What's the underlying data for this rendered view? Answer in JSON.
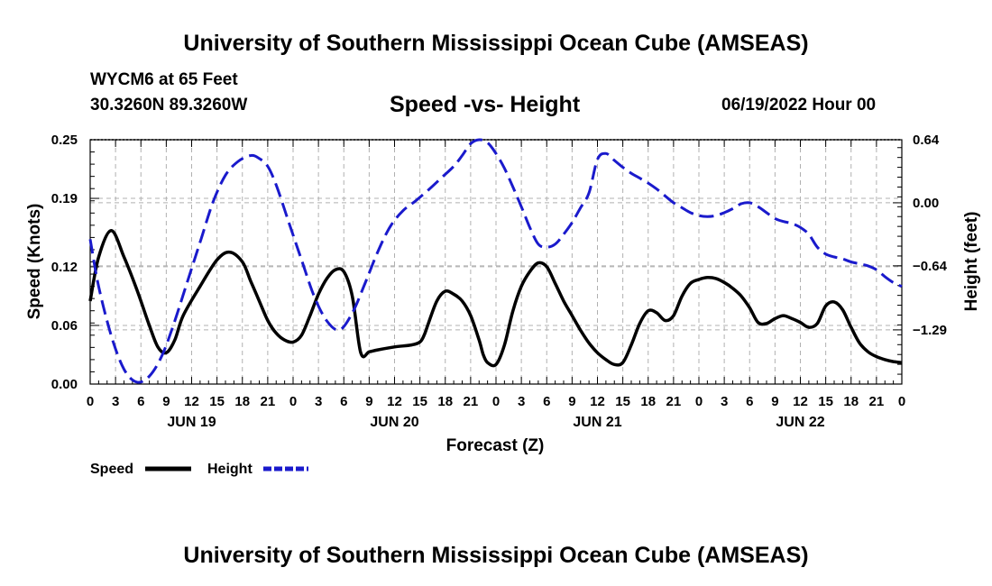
{
  "header": {
    "title": "University of Southern Mississippi Ocean Cube (AMSEAS)",
    "station": "WYCM6 at 65 Feet",
    "coords": "30.3260N  89.3260W",
    "subtitle": "Speed -vs- Height",
    "date": "06/19/2022 Hour 00"
  },
  "footer": {
    "title": "University of Southern Mississippi Ocean Cube (AMSEAS)"
  },
  "colors": {
    "speed": "#000000",
    "height": "#1a1acc",
    "grid": "#b0b0b0"
  },
  "chart_data": {
    "type": "line",
    "xlabel": "Forecast (Z)",
    "ylabel": "Speed (Knots)",
    "y2label": "Height (feet)",
    "x_range": [
      0,
      96
    ],
    "ylim": [
      0,
      0.25
    ],
    "y2lim": [
      -1.84,
      0.64
    ],
    "yticks": [
      0,
      0.06,
      0.12,
      0.19,
      0.25
    ],
    "ytick_labels": [
      "0.00",
      "0.06",
      "0.12",
      "0.19",
      "0.25"
    ],
    "y2ticks": [
      -1.29,
      -0.64,
      0.0,
      0.64
    ],
    "y2tick_labels": [
      "−1.29",
      "−0.64",
      "0.00",
      "0.64"
    ],
    "xtick_hours": [
      0,
      3,
      6,
      9,
      12,
      15,
      18,
      21,
      24,
      27,
      30,
      33,
      36,
      39,
      42,
      45,
      48,
      51,
      54,
      57,
      60,
      63,
      66,
      69,
      72,
      75,
      78,
      81,
      84,
      87,
      90,
      93,
      96
    ],
    "xtick_labels": [
      "0",
      "3",
      "6",
      "9",
      "12",
      "15",
      "18",
      "21",
      "0",
      "3",
      "6",
      "9",
      "12",
      "15",
      "18",
      "21",
      "0",
      "3",
      "6",
      "9",
      "12",
      "15",
      "18",
      "21",
      "0",
      "3",
      "6",
      "9",
      "12",
      "15",
      "18",
      "21",
      "0"
    ],
    "day_labels": [
      {
        "hour": 12,
        "label": "JUN 19"
      },
      {
        "hour": 36,
        "label": "JUN 20"
      },
      {
        "hour": 60,
        "label": "JUN 21"
      },
      {
        "hour": 84,
        "label": "JUN 22"
      }
    ],
    "series": [
      {
        "name": "Speed",
        "axis": "left",
        "style": "solid",
        "x": [
          0,
          1,
          2.5,
          4,
          5.5,
          7,
          8,
          9,
          10,
          11,
          13,
          15,
          16.5,
          18,
          19,
          20,
          21,
          22,
          23,
          24,
          25,
          26,
          27,
          28,
          29,
          30,
          31,
          32,
          33,
          34,
          36,
          38,
          39,
          39.5,
          40,
          41,
          42,
          43,
          44,
          45,
          46,
          46.5,
          47,
          48,
          49,
          50,
          51,
          52,
          53,
          54,
          55,
          56,
          57,
          58,
          59,
          60,
          61,
          62,
          63,
          64,
          65,
          66,
          67,
          68,
          69,
          70,
          71,
          72,
          73,
          74,
          75,
          76,
          77,
          78,
          79,
          80,
          81,
          82,
          83,
          84,
          85,
          86,
          87,
          88,
          89,
          90,
          91,
          92,
          93,
          94,
          95,
          96
        ],
        "values": [
          0.085,
          0.13,
          0.157,
          0.13,
          0.097,
          0.06,
          0.038,
          0.032,
          0.045,
          0.07,
          0.1,
          0.127,
          0.135,
          0.125,
          0.105,
          0.085,
          0.065,
          0.052,
          0.045,
          0.043,
          0.05,
          0.07,
          0.092,
          0.108,
          0.117,
          0.115,
          0.09,
          0.032,
          0.033,
          0.035,
          0.038,
          0.04,
          0.043,
          0.05,
          0.062,
          0.085,
          0.095,
          0.092,
          0.085,
          0.07,
          0.045,
          0.03,
          0.022,
          0.02,
          0.04,
          0.075,
          0.1,
          0.115,
          0.124,
          0.12,
          0.103,
          0.085,
          0.07,
          0.055,
          0.042,
          0.032,
          0.025,
          0.02,
          0.022,
          0.04,
          0.062,
          0.075,
          0.073,
          0.065,
          0.07,
          0.09,
          0.103,
          0.107,
          0.109,
          0.108,
          0.104,
          0.098,
          0.09,
          0.078,
          0.063,
          0.062,
          0.067,
          0.07,
          0.067,
          0.063,
          0.058,
          0.062,
          0.08,
          0.084,
          0.076,
          0.058,
          0.042,
          0.033,
          0.028,
          0.025,
          0.023,
          0.022
        ]
      },
      {
        "name": "Height",
        "axis": "right",
        "style": "dashed",
        "x": [
          0,
          1,
          2.5,
          4,
          5.5,
          7,
          8.5,
          10,
          11.5,
          13,
          14.5,
          16,
          17.5,
          19,
          20,
          21,
          22,
          23.5,
          25,
          26.5,
          28,
          29.5,
          31,
          32.5,
          34,
          35.5,
          37,
          38.5,
          40,
          41.5,
          43,
          44,
          45,
          46,
          47,
          48,
          49,
          50,
          51,
          52,
          53,
          54,
          55,
          56,
          57,
          58,
          59,
          60,
          61,
          62,
          63,
          64,
          65,
          66,
          67,
          68,
          69,
          70,
          71,
          72,
          73,
          74,
          75,
          76,
          77,
          78,
          79,
          80,
          81,
          82,
          83,
          84,
          85,
          86,
          87,
          88,
          89,
          90,
          91,
          92,
          93,
          94,
          95,
          96
        ],
        "values": [
          -0.37,
          -0.85,
          -1.35,
          -1.69,
          -1.82,
          -1.76,
          -1.55,
          -1.2,
          -0.8,
          -0.4,
          0.0,
          0.28,
          0.42,
          0.48,
          0.45,
          0.37,
          0.18,
          -0.2,
          -0.58,
          -0.95,
          -1.2,
          -1.29,
          -1.12,
          -0.82,
          -0.5,
          -0.24,
          -0.08,
          0.02,
          0.13,
          0.25,
          0.37,
          0.48,
          0.6,
          0.64,
          0.61,
          0.5,
          0.35,
          0.16,
          -0.04,
          -0.25,
          -0.42,
          -0.45,
          -0.42,
          -0.32,
          -0.2,
          -0.05,
          0.1,
          0.44,
          0.5,
          0.43,
          0.36,
          0.3,
          0.25,
          0.2,
          0.14,
          0.07,
          0.0,
          -0.05,
          -0.1,
          -0.13,
          -0.14,
          -0.13,
          -0.1,
          -0.06,
          -0.01,
          0.0,
          -0.04,
          -0.1,
          -0.16,
          -0.19,
          -0.21,
          -0.25,
          -0.32,
          -0.45,
          -0.52,
          -0.55,
          -0.57,
          -0.6,
          -0.62,
          -0.64,
          -0.68,
          -0.75,
          -0.81,
          -0.85
        ]
      }
    ]
  }
}
